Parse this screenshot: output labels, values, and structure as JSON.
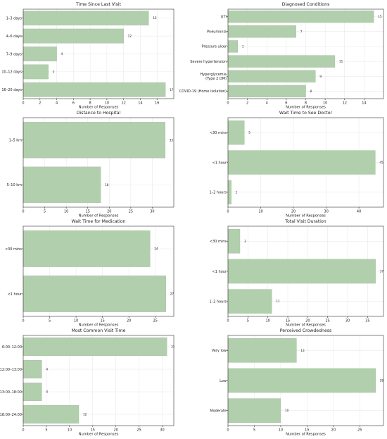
{
  "chart_data": [
    {
      "type": "bar",
      "orientation": "horizontal",
      "title": "Time Since Last Visit",
      "xlabel": "Number of Responses",
      "categories": [
        "1–3 days",
        "4–6 days",
        "7–9 days",
        "10–12 days",
        "16–20 days"
      ],
      "values": [
        15,
        12,
        4,
        3,
        17
      ],
      "xlim": [
        0,
        18
      ],
      "xticks": [
        0,
        2,
        4,
        6,
        8,
        10,
        12,
        14,
        16
      ],
      "grid": true,
      "color": "#b2cfad"
    },
    {
      "type": "bar",
      "orientation": "horizontal",
      "title": "Diagnosed Conditions",
      "xlabel": "Number of Responses",
      "categories": [
        "UTI",
        "Pneumonia",
        "Pressure ulcer",
        "Severe hypertension",
        "Hyperglycemia\n(Type 2 DM)",
        "COVID-19 (Home isolation)"
      ],
      "values": [
        15,
        7,
        1,
        11,
        9,
        8
      ],
      "xlim": [
        0,
        16
      ],
      "xticks": [
        0,
        2,
        4,
        6,
        8,
        10,
        12,
        14
      ],
      "grid": true,
      "color": "#b2cfad"
    },
    {
      "type": "bar",
      "orientation": "horizontal",
      "title": "Distance to Hospital",
      "xlabel": "Number of Responses",
      "categories": [
        "1–5 km",
        "5–10 km"
      ],
      "values": [
        33,
        18
      ],
      "xlim": [
        0,
        35
      ],
      "xticks": [
        0,
        5,
        10,
        15,
        20,
        25,
        30
      ],
      "grid": true,
      "color": "#b2cfad"
    },
    {
      "type": "bar",
      "orientation": "horizontal",
      "title": "Wait Time to See Doctor",
      "xlabel": "Number of Responses",
      "categories": [
        "<30 mins",
        "<1 hour",
        "1–2 hours"
      ],
      "values": [
        5,
        45,
        1
      ],
      "xlim": [
        0,
        47.5
      ],
      "xticks": [
        0,
        10,
        20,
        30,
        40
      ],
      "grid": true,
      "color": "#b2cfad"
    },
    {
      "type": "bar",
      "orientation": "horizontal",
      "title": "Wait Time for Medication",
      "xlabel": "Number of Responses",
      "categories": [
        "<30 mins",
        "<1 hour"
      ],
      "values": [
        24,
        27
      ],
      "xlim": [
        0,
        28.5
      ],
      "xticks": [
        0,
        5,
        10,
        15,
        20,
        25
      ],
      "grid": true,
      "color": "#b2cfad"
    },
    {
      "type": "bar",
      "orientation": "horizontal",
      "title": "Total Visit Duration",
      "xlabel": "Number of Responses",
      "categories": [
        "<30 mins",
        "<1 hour",
        "1–2 hours"
      ],
      "values": [
        3,
        37,
        11
      ],
      "xlim": [
        0,
        39
      ],
      "xticks": [
        0,
        5,
        10,
        15,
        20,
        25,
        30,
        35
      ],
      "grid": true,
      "color": "#b2cfad"
    },
    {
      "type": "bar",
      "orientation": "horizontal",
      "title": "Most Common Visit Time",
      "xlabel": "Number of Responses",
      "categories": [
        "6:00–12:00",
        "12:00–13:00",
        "13:00–18:00",
        "18:00–24:00"
      ],
      "values": [
        31,
        4,
        4,
        12
      ],
      "xlim": [
        0,
        32.5
      ],
      "xticks": [
        0,
        5,
        10,
        15,
        20,
        25,
        30
      ],
      "grid": true,
      "color": "#b2cfad"
    },
    {
      "type": "bar",
      "orientation": "horizontal",
      "title": "Perceived Crowdedness",
      "xlabel": "Number of Responses",
      "categories": [
        "Very low",
        "Low",
        "Moderate"
      ],
      "values": [
        13,
        28,
        10
      ],
      "xlim": [
        0,
        29.5
      ],
      "xticks": [
        0,
        5,
        10,
        15,
        20,
        25
      ],
      "grid": true,
      "color": "#b2cfad"
    }
  ]
}
